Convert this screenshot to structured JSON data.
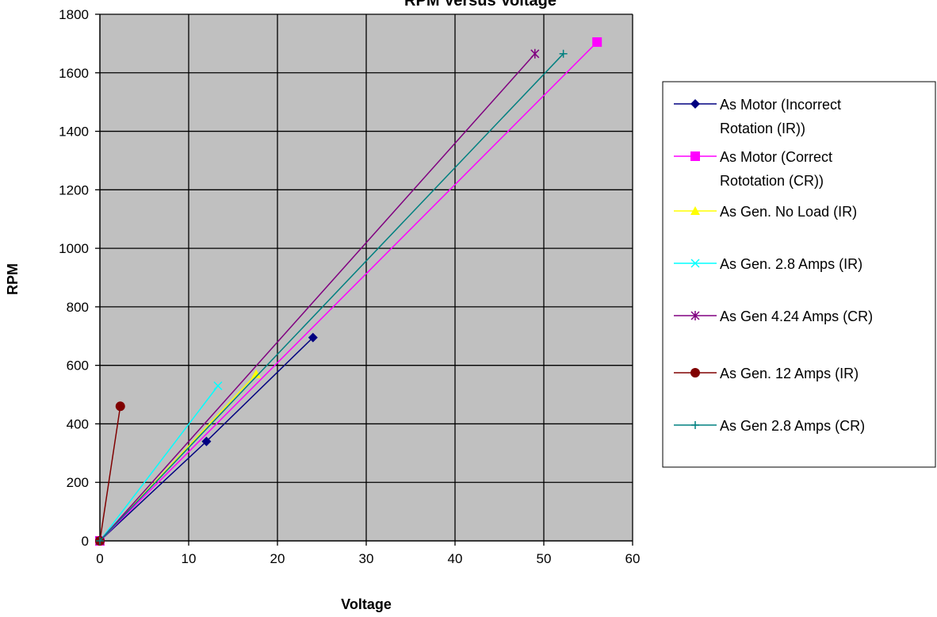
{
  "colors": {
    "plot_background": "#c0c0c0",
    "gridline": "#000000"
  },
  "chart_data": {
    "type": "scatter",
    "title": "RPM Versus Voltage",
    "xlabel": "Voltage",
    "ylabel": "RPM",
    "xlim": [
      0,
      60
    ],
    "ylim": [
      0,
      1800
    ],
    "xticks": [
      0,
      10,
      20,
      30,
      40,
      50,
      60
    ],
    "yticks": [
      0,
      200,
      400,
      600,
      800,
      1000,
      1200,
      1400,
      1600,
      1800
    ],
    "grid": true,
    "legend_position": "right",
    "series": [
      {
        "name": [
          "As Motor (Incorrect",
          "Rotation (IR))"
        ],
        "color": "#000080",
        "marker": "diamond",
        "x": [
          0,
          12,
          24
        ],
        "y": [
          0,
          340,
          695
        ]
      },
      {
        "name": [
          "As Motor (Correct",
          "Rototation (CR))"
        ],
        "color": "#ff00ff",
        "marker": "square",
        "x": [
          0,
          56
        ],
        "y": [
          0,
          1705
        ]
      },
      {
        "name": [
          "As Gen. No Load (IR)"
        ],
        "color": "#ffff00",
        "marker": "triangle",
        "x": [
          0,
          17.6
        ],
        "y": [
          0,
          570
        ]
      },
      {
        "name": [
          "As Gen. 2.8 Amps (IR)"
        ],
        "color": "#00ffff",
        "marker": "x",
        "x": [
          0,
          13.3
        ],
        "y": [
          0,
          530
        ]
      },
      {
        "name": [
          "As Gen 4.24 Amps (CR)"
        ],
        "color": "#800080",
        "marker": "star",
        "x": [
          0,
          49
        ],
        "y": [
          0,
          1665
        ]
      },
      {
        "name": [
          "As Gen. 12 Amps (IR)"
        ],
        "color": "#800000",
        "marker": "circle",
        "x": [
          0,
          2.3
        ],
        "y": [
          0,
          460
        ]
      },
      {
        "name": [
          "As Gen 2.8 Amps (CR)"
        ],
        "color": "#008080",
        "marker": "plus",
        "x": [
          0,
          52.2
        ],
        "y": [
          0,
          1665
        ]
      }
    ]
  }
}
